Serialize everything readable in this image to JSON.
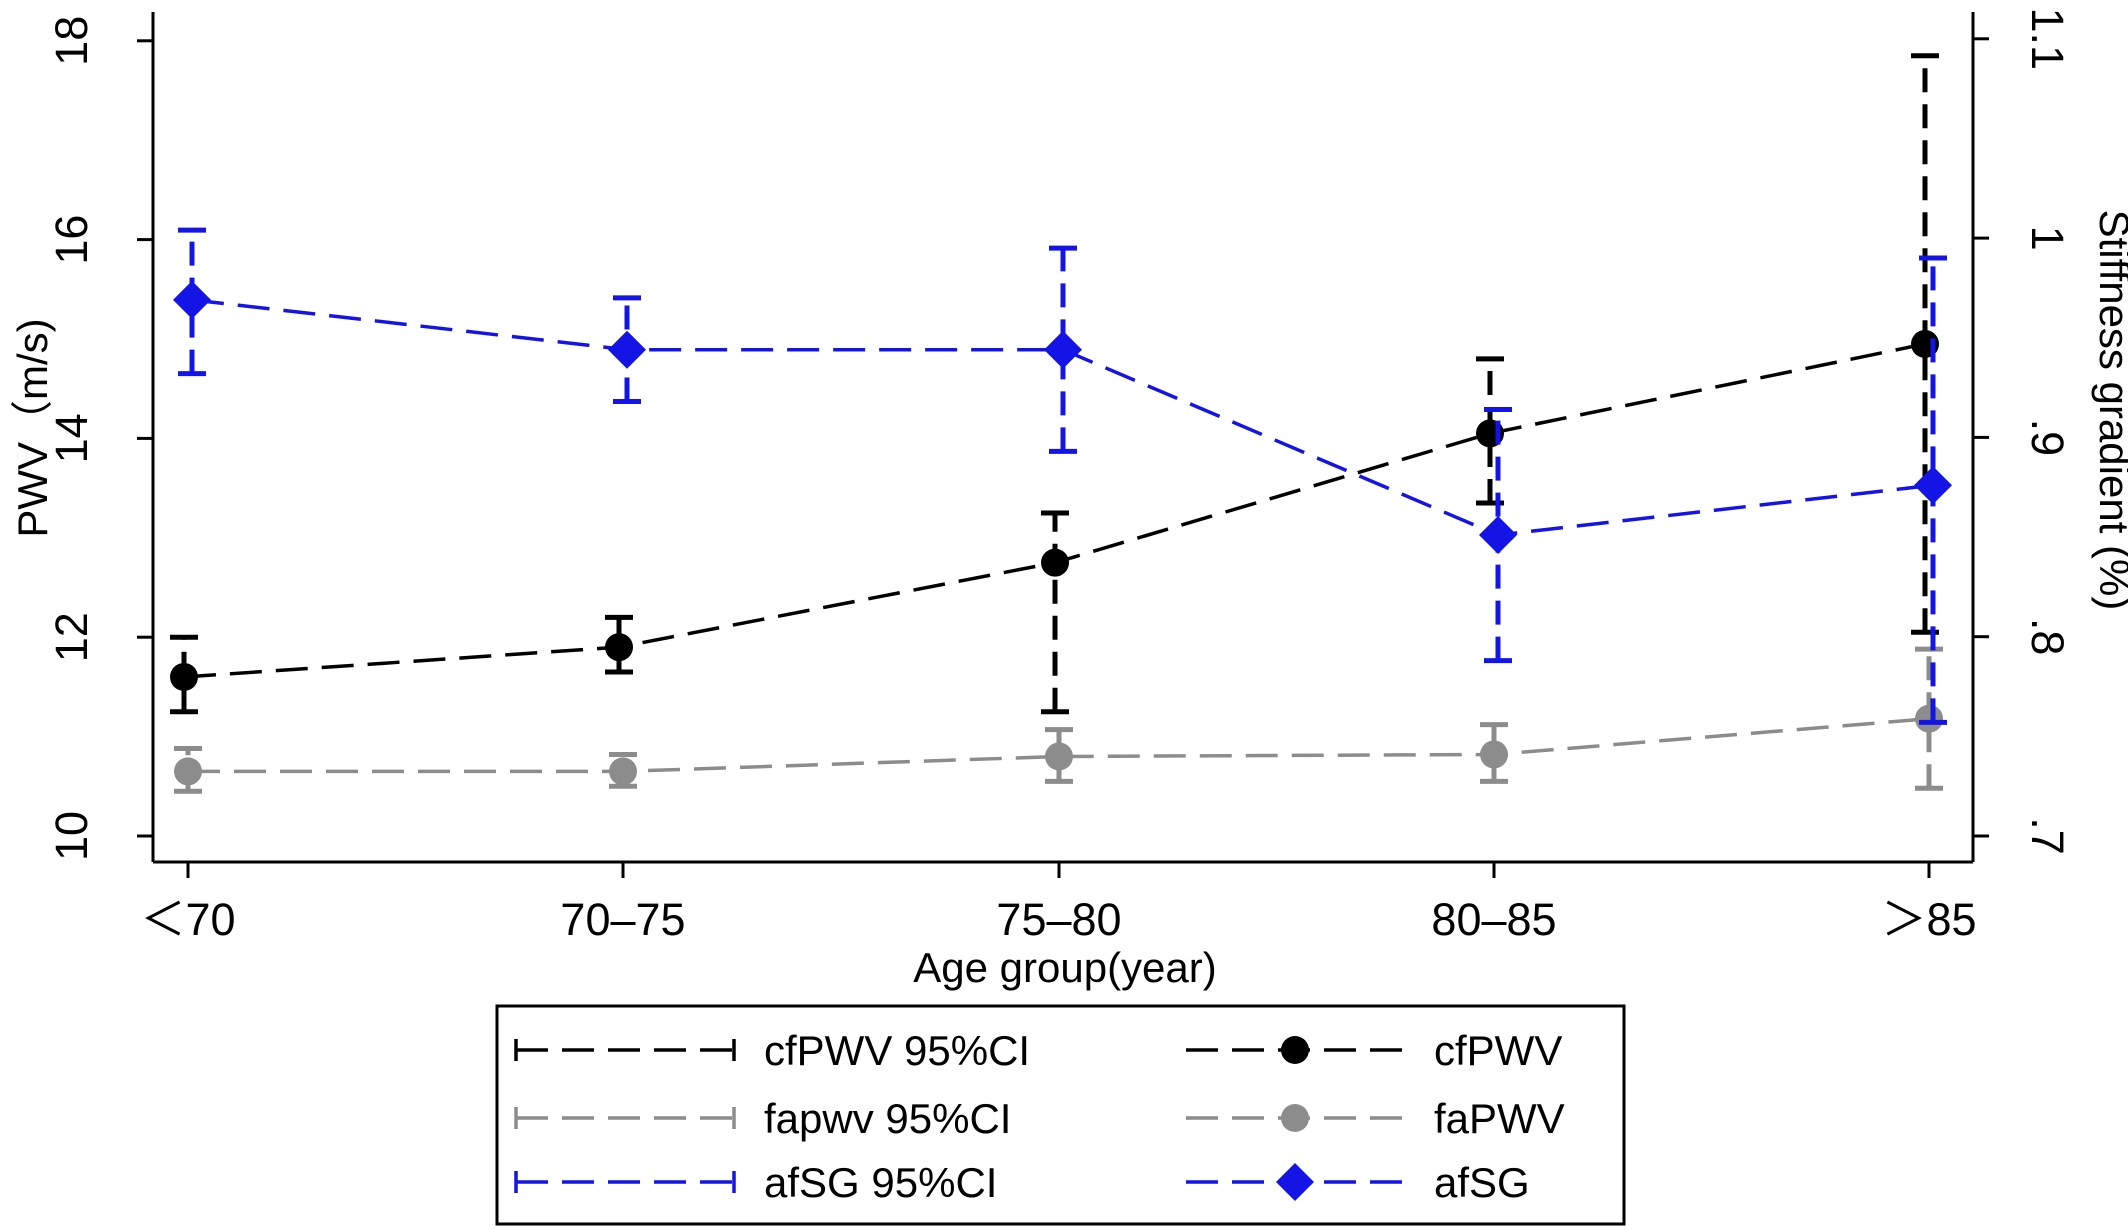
{
  "chart_data": {
    "type": "line",
    "xlabel": "Age group(year)",
    "ylabel_left": "PWV（m/s)",
    "ylabel_right": "Stiffness gradient (%)",
    "categories": [
      "＜70",
      "70–75",
      "75–80",
      "80–85",
      "＞85"
    ],
    "y_left": {
      "range": [
        10,
        18
      ],
      "ticks": [
        10,
        12,
        14,
        16,
        18
      ],
      "tick_labels": [
        "10",
        "12",
        "14",
        "16",
        "18"
      ]
    },
    "y_right": {
      "range": [
        0.7,
        1.1
      ],
      "ticks": [
        0.7,
        0.8,
        0.9,
        1.0,
        1.1
      ],
      "tick_labels": [
        ".7",
        ".8",
        ".9",
        "1",
        "1.1"
      ]
    },
    "grid": false,
    "legend_position": "bottom",
    "series": [
      {
        "name": "cfPWV",
        "ci_name": "cfPWV 95%CI",
        "axis": "left",
        "marker": "circle",
        "color": "#000000",
        "values": [
          11.6,
          11.9,
          12.75,
          14.05,
          14.95
        ],
        "ci_low": [
          11.25,
          11.65,
          11.25,
          13.35,
          12.05
        ],
        "ci_high": [
          12.0,
          12.2,
          13.25,
          14.8,
          17.85
        ]
      },
      {
        "name": "faPWV",
        "ci_name": "fapwv 95%CI",
        "axis": "left",
        "marker": "circle",
        "color": "#8c8c8c",
        "values": [
          10.65,
          10.65,
          10.8,
          10.82,
          11.18
        ],
        "ci_low": [
          10.45,
          10.5,
          10.55,
          10.55,
          10.48
        ],
        "ci_high": [
          10.88,
          10.82,
          11.07,
          11.12,
          11.88
        ]
      },
      {
        "name": "afSG",
        "ci_name": "afSG 95%CI",
        "axis": "right",
        "marker": "diamond",
        "color": "#1414e6",
        "values": [
          0.969,
          0.944,
          0.944,
          0.851,
          0.876
        ],
        "ci_low": [
          0.932,
          0.918,
          0.893,
          0.788,
          0.757
        ],
        "ci_high": [
          1.004,
          0.97,
          0.995,
          0.914,
          0.99
        ]
      }
    ]
  }
}
